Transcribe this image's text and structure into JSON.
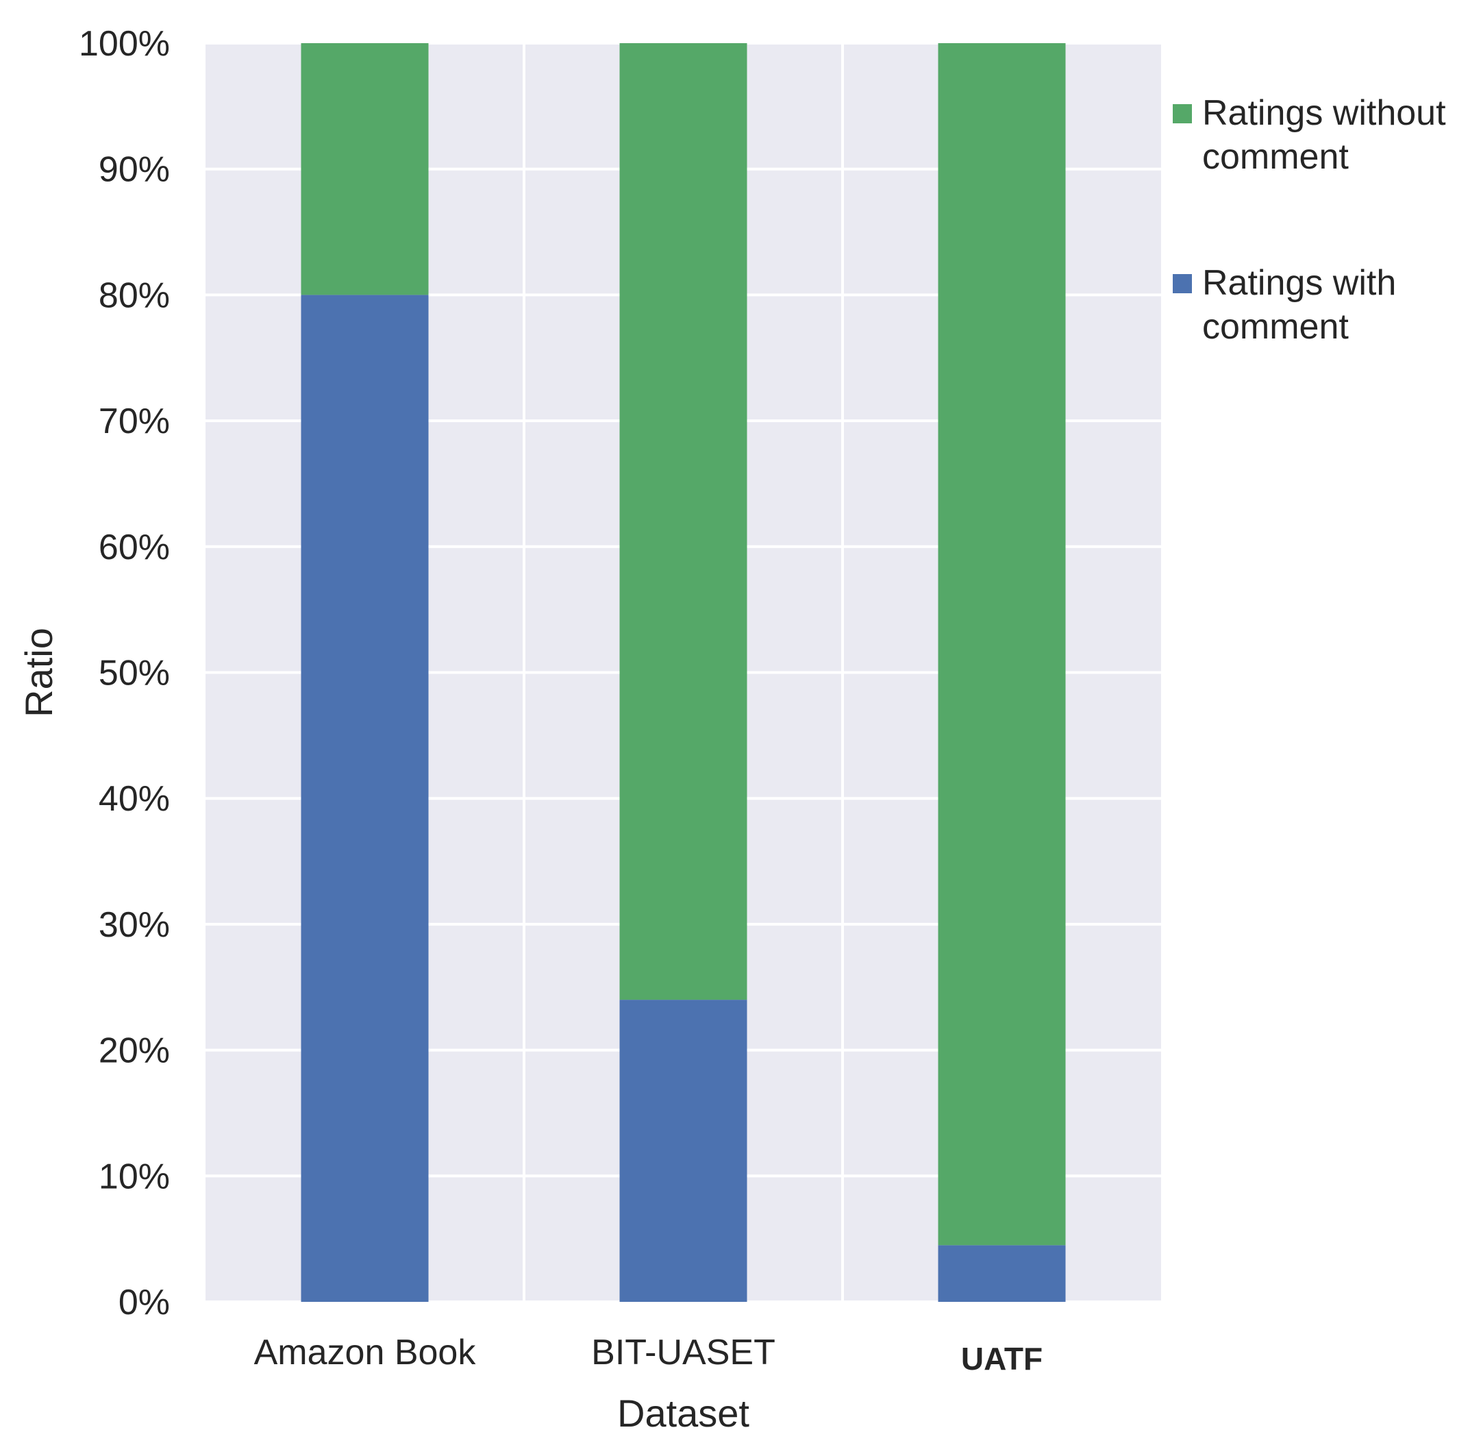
{
  "chart_data": {
    "type": "bar",
    "stacked": true,
    "categories": [
      "Amazon Book",
      "BIT-UASET",
      "UATF"
    ],
    "category_bold": [
      false,
      false,
      true
    ],
    "series": [
      {
        "name": "Ratings with comment",
        "values": [
          80,
          24,
          4.5
        ],
        "color": "#4C72B0"
      },
      {
        "name": "Ratings without comment",
        "values": [
          20,
          76,
          95.5
        ],
        "color": "#55A868"
      }
    ],
    "xlabel": "Dataset",
    "ylabel": "Ratio",
    "ylim": [
      0,
      100
    ],
    "yticks": [
      0,
      10,
      20,
      30,
      40,
      50,
      60,
      70,
      80,
      90,
      100
    ],
    "ytick_labels": [
      "0%",
      "10%",
      "20%",
      "30%",
      "40%",
      "50%",
      "60%",
      "70%",
      "80%",
      "90%",
      "100%"
    ],
    "grid": true,
    "plot_background": "#EAEAF2",
    "grid_color": "#FFFFFF",
    "legend": {
      "position": "right",
      "entries": [
        {
          "lines": [
            "Ratings without",
            "comment"
          ],
          "color": "#55A868"
        },
        {
          "lines": [
            "Ratings with",
            "comment"
          ],
          "color": "#4C72B0"
        }
      ]
    }
  }
}
